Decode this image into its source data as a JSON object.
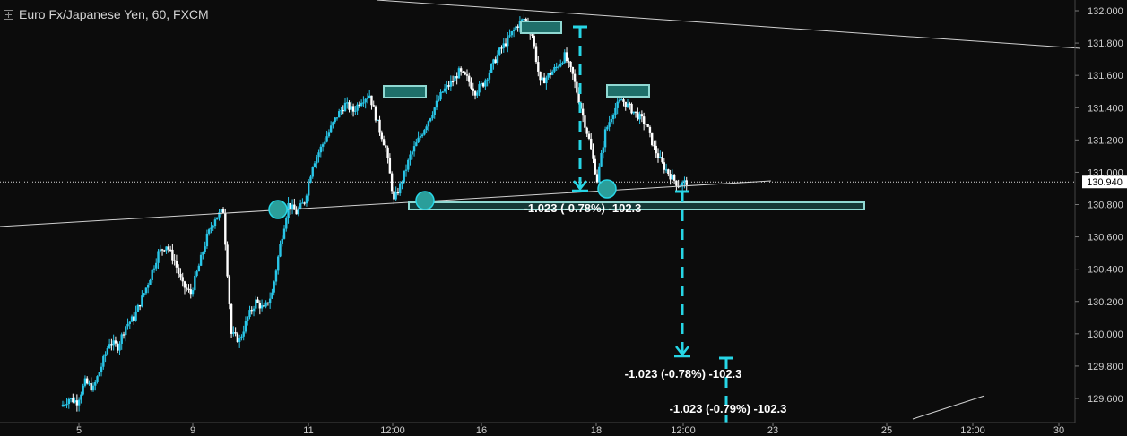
{
  "header": {
    "symbol_line": "Euro Fx/Japanese Yen, 60, FXCM"
  },
  "price_label": "130.940",
  "colors": {
    "background": "#0c0c0c",
    "up_candle": "#29c6e8",
    "down_candle": "#ffffff",
    "accent": "#27d6e6",
    "box_fill": "#1f6f6a",
    "box_border": "#8fd8d2",
    "trendline": "#d0d0d0",
    "axis_text": "#cfcfcf"
  },
  "chart_data": {
    "type": "candlestick",
    "ylim": [
      129.5,
      132.05
    ],
    "grid": false,
    "y_ticks": [
      "132.000",
      "131.800",
      "131.600",
      "131.400",
      "131.200",
      "131.000",
      "130.800",
      "130.600",
      "130.400",
      "130.200",
      "130.000",
      "129.800",
      "129.600"
    ],
    "x_ticks": [
      "5",
      "9",
      "11",
      "12:00",
      "16",
      "18",
      "12:00",
      "23",
      "25",
      "12:00",
      "30"
    ],
    "current_price": 130.94,
    "price_path": [
      129.55,
      129.6,
      129.58,
      129.7,
      129.66,
      129.8,
      129.95,
      129.92,
      130.05,
      130.1,
      130.22,
      130.35,
      130.5,
      130.55,
      130.45,
      130.3,
      130.25,
      130.42,
      130.6,
      130.72,
      130.76,
      130.0,
      129.96,
      130.1,
      130.2,
      130.15,
      130.25,
      130.55,
      130.8,
      130.75,
      130.82,
      131.05,
      131.15,
      131.25,
      131.35,
      131.42,
      131.38,
      131.45,
      131.48,
      131.3,
      131.15,
      130.82,
      130.95,
      131.1,
      131.2,
      131.3,
      131.4,
      131.5,
      131.55,
      131.62,
      131.58,
      131.5,
      131.55,
      131.65,
      131.75,
      131.82,
      131.9,
      131.95,
      131.85,
      131.55,
      131.6,
      131.65,
      131.72,
      131.6,
      131.4,
      131.2,
      130.95,
      131.25,
      131.38,
      131.45,
      131.4,
      131.35,
      131.3,
      131.15,
      131.05,
      130.98,
      130.92,
      130.94
    ],
    "annotations": {
      "measure_labels": [
        "-1.023 (-0.78%) -102.3",
        "-1.023 (-0.78%) -102.3",
        "-1.023 (-0.79%) -102.3"
      ],
      "pattern": "head-and-shoulders",
      "neckline_points": [
        {
          "price": 130.82
        },
        {
          "price": 130.9
        }
      ]
    }
  }
}
